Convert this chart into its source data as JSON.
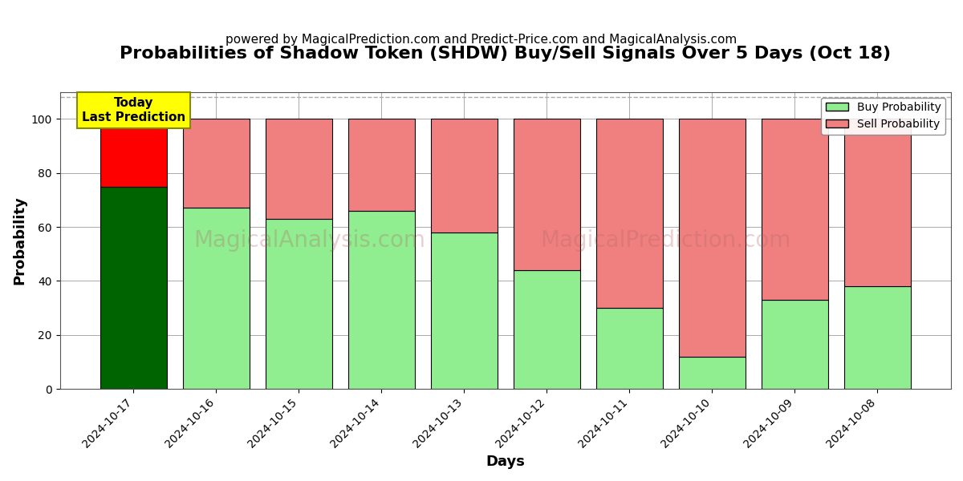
{
  "title": "Probabilities of Shadow Token (SHDW) Buy/Sell Signals Over 5 Days (Oct 18)",
  "subtitle": "powered by MagicalPrediction.com and Predict-Price.com and MagicalAnalysis.com",
  "xlabel": "Days",
  "ylabel": "Probability",
  "watermark1": "MagicalAnalysis.com",
  "watermark2": "MagicalPrediction.com",
  "dates": [
    "2024-10-17",
    "2024-10-16",
    "2024-10-15",
    "2024-10-14",
    "2024-10-13",
    "2024-10-12",
    "2024-10-11",
    "2024-10-10",
    "2024-10-09",
    "2024-10-08"
  ],
  "buy_probs": [
    75,
    67,
    63,
    66,
    58,
    44,
    30,
    12,
    33,
    38
  ],
  "sell_probs": [
    25,
    33,
    37,
    34,
    42,
    56,
    70,
    88,
    67,
    62
  ],
  "buy_color_today": "#006400",
  "sell_color_today": "#ff0000",
  "buy_color_rest": "#90EE90",
  "sell_color_rest": "#F08080",
  "today_annotation": "Today\nLast Prediction",
  "annotation_bg_color": "#FFFF00",
  "ylim": [
    0,
    110
  ],
  "yticks": [
    0,
    20,
    40,
    60,
    80,
    100
  ],
  "dashed_line_y": 108,
  "legend_buy_label": "Buy Probability",
  "legend_sell_label": "Sell Probability",
  "bar_width": 0.8,
  "bar_edgecolor": "#000000",
  "grid_color": "#aaaaaa",
  "background_color": "#ffffff",
  "title_fontsize": 16,
  "subtitle_fontsize": 11,
  "ylabel_fontsize": 13,
  "xlabel_fontsize": 13,
  "watermark_color": [
    0.7,
    0.4,
    0.4
  ],
  "watermark_alpha": 0.3,
  "watermark_fontsize": 20
}
